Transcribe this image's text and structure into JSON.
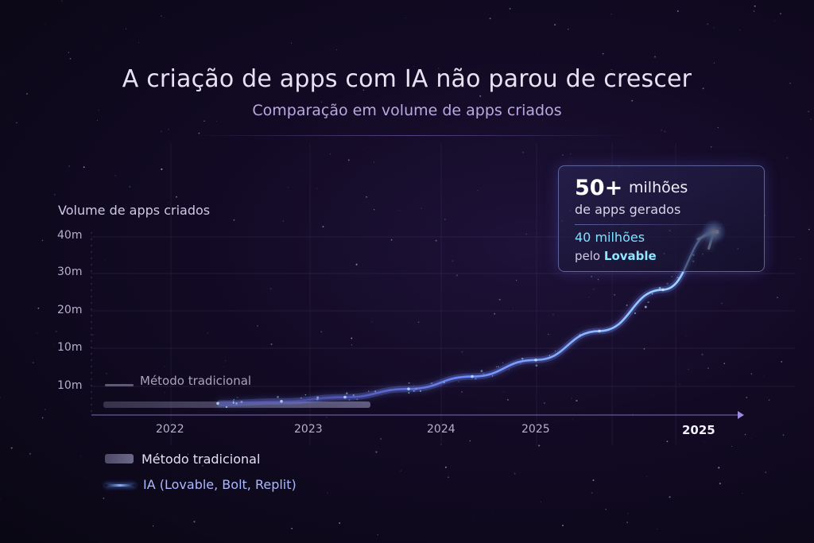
{
  "title": "A criação de apps com IA não parou de crescer",
  "subtitle": "Comparação em volume de apps criados",
  "callout": {
    "big_number": "50+",
    "big_unit": "milhões",
    "line2": "de apps gerados",
    "highlight_number": "40 milhões",
    "by_prefix": "pelo",
    "by_brand": "Lovable"
  },
  "inline_label": "Método tradicional",
  "colors": {
    "background": "#120a24",
    "ai_line": "#6f8cff",
    "ai_glow": "#9fd8ff",
    "traditional_bar": "#5d5a78",
    "highlight_text": "#7fe0ff"
  },
  "chart_data": {
    "type": "line",
    "title": "A criação de apps com IA não parou de crescer",
    "subtitle": "Comparação em volume de apps criados",
    "ylabel": "Volume de apps criados",
    "xlabel": "",
    "y_tick_labels": [
      "40m",
      "30m",
      "20m",
      "10m",
      "10m"
    ],
    "x_tick_labels": [
      "2022",
      "2023",
      "2024",
      "2025",
      "2025"
    ],
    "ylim": [
      0,
      50
    ],
    "grid": true,
    "legend_position": "bottom-left",
    "series": [
      {
        "name": "Método tradicional",
        "style": "flat-bar",
        "x": [
          2021.6,
          2023.7
        ],
        "y": [
          0.5,
          0.5
        ]
      },
      {
        "name": "IA (Lovable, Bolt, Replit)",
        "style": "glowing-curve",
        "x": [
          2022.5,
          2023.0,
          2023.5,
          2024.0,
          2024.5,
          2025.0,
          2025.5,
          2026.0,
          2026.4
        ],
        "y": [
          0.5,
          1,
          2,
          4,
          7,
          11,
          18,
          28,
          42
        ]
      }
    ],
    "legend": [
      "Método tradicional",
      "IA (Lovable, Bolt, Replit)"
    ]
  }
}
